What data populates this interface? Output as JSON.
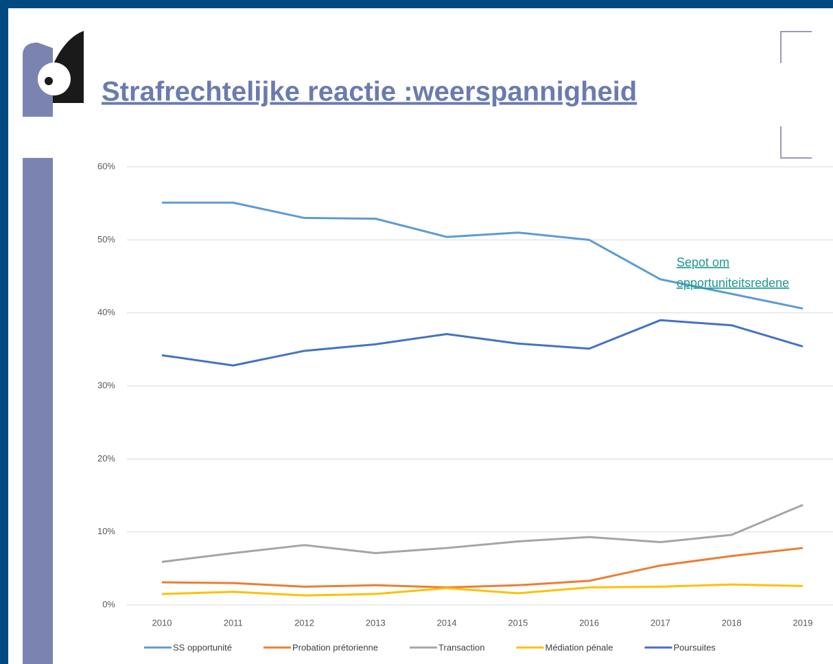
{
  "title": "Strafrechtelijke reactie :weerspannigheid",
  "chart_data": {
    "type": "line",
    "annotation": [
      "Sepot om",
      "opportuniteitsredene"
    ],
    "x": [
      "2010",
      "2011",
      "2012",
      "2013",
      "2014",
      "2015",
      "2016",
      "2017",
      "2018",
      "2019"
    ],
    "series": [
      {
        "name": "SS opportunité",
        "color": "#5b9bd5",
        "values": [
          55.1,
          55.1,
          53.0,
          52.9,
          50.4,
          51.0,
          50.0,
          44.6,
          42.6,
          40.6
        ]
      },
      {
        "name": "Probation prétorienne",
        "color": "#ed7d31",
        "values": [
          3.1,
          3.0,
          2.5,
          2.7,
          2.4,
          2.7,
          3.3,
          5.4,
          6.7,
          7.8
        ]
      },
      {
        "name": "Transaction",
        "color": "#a5a5a5",
        "values": [
          5.9,
          7.1,
          8.2,
          7.1,
          7.8,
          8.7,
          9.3,
          8.6,
          9.6,
          13.7
        ]
      },
      {
        "name": "Médiation pénale",
        "color": "#ffc000",
        "values": [
          1.5,
          1.8,
          1.3,
          1.5,
          2.3,
          1.6,
          2.4,
          2.5,
          2.8,
          2.6
        ]
      },
      {
        "name": "Poursuites",
        "color": "#4472c4",
        "values": [
          34.2,
          32.8,
          34.8,
          35.7,
          37.1,
          35.8,
          35.1,
          39.0,
          38.3,
          35.4
        ]
      }
    ],
    "ylim": [
      0,
      60
    ],
    "yticks": [
      {
        "value": 0,
        "label": "0%"
      },
      {
        "value": 10,
        "label": "10%"
      },
      {
        "value": 20,
        "label": "20%"
      },
      {
        "value": 30,
        "label": "30%"
      },
      {
        "value": 40,
        "label": "40%"
      },
      {
        "value": 50,
        "label": "50%"
      },
      {
        "value": 60,
        "label": "60%"
      }
    ],
    "grid": true,
    "legend": "bottom"
  }
}
